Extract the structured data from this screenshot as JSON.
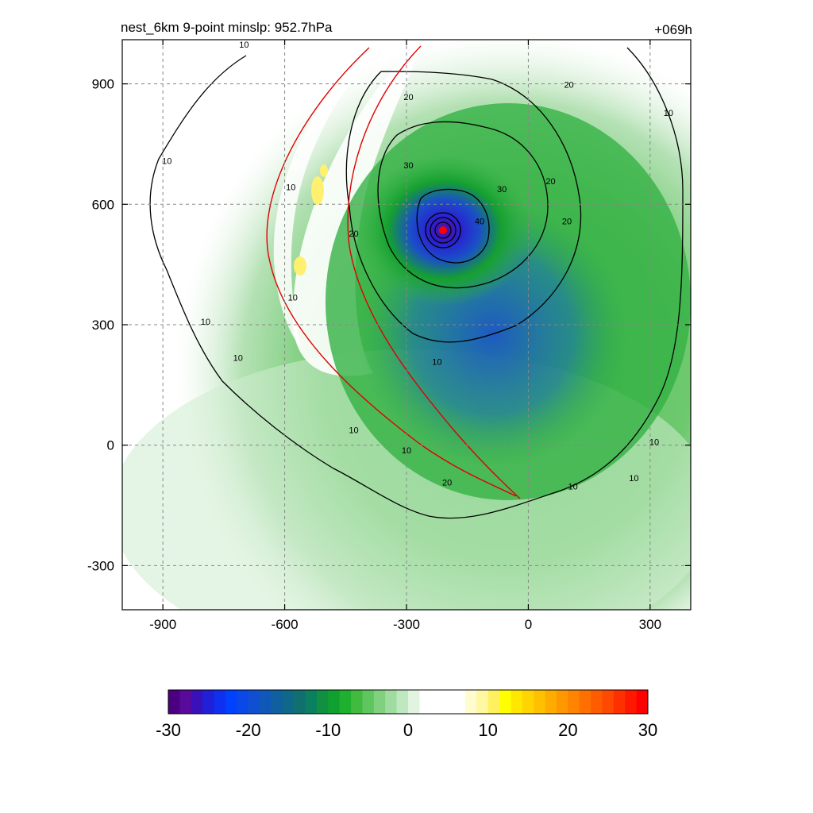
{
  "chart_data": {
    "type": "heatmap",
    "title_left": "nest_6km  9-point minslp: 952.7hPa",
    "title_right": "+069h",
    "xlabel": "",
    "ylabel": "",
    "xlim": [
      -1000,
      400
    ],
    "ylim": [
      -410,
      1010
    ],
    "x_ticks": [
      -900,
      -600,
      -300,
      0,
      300
    ],
    "y_ticks": [
      900,
      600,
      300,
      0,
      -300
    ],
    "grid": true,
    "center": {
      "x": -205,
      "y": 540
    },
    "contour_labels": [
      {
        "text": "10",
        "x": -700,
        "y": 990
      },
      {
        "text": "10",
        "x": -890,
        "y": 700
      },
      {
        "text": "10",
        "x": -585,
        "y": 635
      },
      {
        "text": "10",
        "x": -580,
        "y": 360
      },
      {
        "text": "10",
        "x": -795,
        "y": 300
      },
      {
        "text": "10",
        "x": -715,
        "y": 210
      },
      {
        "text": "10",
        "x": -430,
        "y": 30
      },
      {
        "text": "10",
        "x": -300,
        "y": -20
      },
      {
        "text": "10",
        "x": -225,
        "y": 200
      },
      {
        "text": "10",
        "x": 110,
        "y": -110
      },
      {
        "text": "10",
        "x": 260,
        "y": -90
      },
      {
        "text": "10",
        "x": 310,
        "y": 0
      },
      {
        "text": "10",
        "x": 345,
        "y": 820
      },
      {
        "text": "20",
        "x": -295,
        "y": 860
      },
      {
        "text": "20",
        "x": -430,
        "y": 520
      },
      {
        "text": "20",
        "x": -200,
        "y": -100
      },
      {
        "text": "20",
        "x": 55,
        "y": 650
      },
      {
        "text": "20",
        "x": 95,
        "y": 550
      },
      {
        "text": "20",
        "x": 100,
        "y": 890
      },
      {
        "text": "30",
        "x": -295,
        "y": 690
      },
      {
        "text": "30",
        "x": -65,
        "y": 630
      },
      {
        "text": "40",
        "x": -120,
        "y": 550
      }
    ],
    "colorbar": {
      "min": -30,
      "max": 30,
      "tick_labels": [
        "-30",
        "-20",
        "-10",
        "0",
        "10",
        "20",
        "30"
      ],
      "colors": [
        "#4b0082",
        "#5a0a9b",
        "#3a10b8",
        "#2020d8",
        "#1030f0",
        "#0040ff",
        "#0a48e8",
        "#1050d0",
        "#1058b8",
        "#1060a0",
        "#106888",
        "#107070",
        "#0a8060",
        "#109040",
        "#10a030",
        "#20b030",
        "#40bb40",
        "#5fc55f",
        "#80d080",
        "#a0dca0",
        "#c0e8c0",
        "#e0f4e0",
        "#ffffff",
        "#ffffff",
        "#ffffff",
        "#ffffff",
        "#fffcd0",
        "#fff8a0",
        "#fff060",
        "#ffff00",
        "#ffe800",
        "#ffd400",
        "#ffc000",
        "#ffac00",
        "#ff9800",
        "#ff8400",
        "#ff7000",
        "#ff5c00",
        "#ff4800",
        "#ff3000",
        "#ff1800",
        "#ff0000"
      ]
    }
  }
}
